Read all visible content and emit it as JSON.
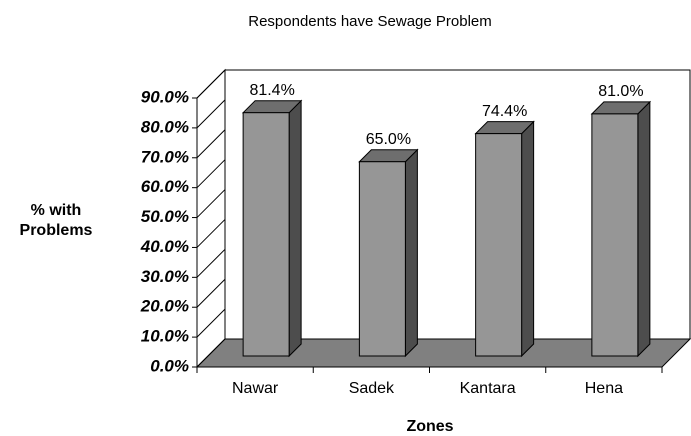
{
  "chart_data": {
    "type": "bar3d",
    "title": "Respondents have Sewage Problem",
    "x_label": "Zones",
    "y_label": "% with Problems",
    "categories": [
      "Nawar",
      "Sadek",
      "Kantara",
      "Hena"
    ],
    "values": [
      81.4,
      65.0,
      74.4,
      81.0
    ],
    "value_labels": [
      "81.4%",
      "65.0%",
      "74.4%",
      "81.0%"
    ],
    "color": "#969696",
    "floor_color": "#808080",
    "ylim": [
      0,
      90
    ],
    "yticks": [
      {
        "value": 0,
        "label": "0.0%"
      },
      {
        "value": 10,
        "label": "10.0%"
      },
      {
        "value": 20,
        "label": "20.0%"
      },
      {
        "value": 30,
        "label": "30.0%"
      },
      {
        "value": 40,
        "label": "40.0%"
      },
      {
        "value": 50,
        "label": "50.0%"
      },
      {
        "value": 60,
        "label": "60.0%"
      },
      {
        "value": 70,
        "label": "70.0%"
      },
      {
        "value": 80,
        "label": "80.0%"
      },
      {
        "value": 90,
        "label": "90.0%"
      }
    ],
    "grid": true
  }
}
